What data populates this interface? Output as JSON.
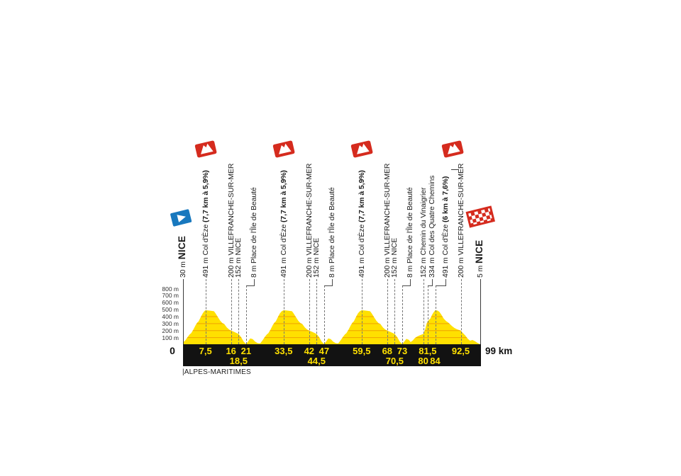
{
  "chart_data": {
    "type": "area",
    "x_unit": "km",
    "xlim": [
      0,
      99
    ],
    "ylim_m": [
      0,
      800
    ],
    "grid": "horizontal-inside-area",
    "colors": {
      "profile_yellow": "#FFE000",
      "gridline_orange": "#F0A202",
      "climb_red": "#D52B1E",
      "start_blue": "#1878BE",
      "bar_black": "#121212",
      "bar_text_yellow": "#FFE000",
      "label_dark": "#1c1c1c"
    },
    "axis": {
      "origin_label": "0",
      "end_label": "99 km",
      "region_label": "|ALPES-MARITIMES",
      "y_ticks": [
        {
          "m": 800,
          "label": "800 m"
        },
        {
          "m": 700,
          "label": "700 m"
        },
        {
          "m": 600,
          "label": "600 m"
        },
        {
          "m": 500,
          "label": "500 m"
        },
        {
          "m": 400,
          "label": "400 m"
        },
        {
          "m": 300,
          "label": "300 m"
        },
        {
          "m": 200,
          "label": "200 m"
        },
        {
          "m": 100,
          "label": "100 m"
        }
      ]
    },
    "km_labels": [
      {
        "km": 7.5,
        "label": "7,5",
        "row": 1
      },
      {
        "km": 16,
        "label": "16",
        "row": 1
      },
      {
        "km": 21,
        "label": "21",
        "row": 1
      },
      {
        "km": 18.5,
        "label": "18,5",
        "row": 2
      },
      {
        "km": 33.5,
        "label": "33,5",
        "row": 1
      },
      {
        "km": 42,
        "label": "42",
        "row": 1
      },
      {
        "km": 47,
        "label": "47",
        "row": 1
      },
      {
        "km": 44.5,
        "label": "44,5",
        "row": 2
      },
      {
        "km": 59.5,
        "label": "59,5",
        "row": 1
      },
      {
        "km": 68,
        "label": "68",
        "row": 1
      },
      {
        "km": 73,
        "label": "73",
        "row": 1
      },
      {
        "km": 70.5,
        "label": "70,5",
        "row": 2
      },
      {
        "km": 81.5,
        "label": "81,5",
        "row": 1
      },
      {
        "km": 80,
        "label": "80",
        "row": 2
      },
      {
        "km": 84,
        "label": "84",
        "row": 2
      },
      {
        "km": 92.5,
        "label": "92,5",
        "row": 1
      }
    ],
    "waypoints": [
      {
        "km": 0,
        "text": "30 m ",
        "bold": "NICE",
        "bold_big": true,
        "type": "start",
        "line": "solid",
        "icon": "start-flag"
      },
      {
        "km": 7.5,
        "text": "491 m Col d'Èze ",
        "bold": "(7,7 km à 5,9%)",
        "type": "climb",
        "icon": "climb-flag"
      },
      {
        "km": 16,
        "text": "200 m VILLEFRANCHE-SUR-MER"
      },
      {
        "km": 18.5,
        "text": "152 m NICE"
      },
      {
        "km": 21,
        "text": "8 m Place de l'Île de Beauté",
        "label_dx": 11
      },
      {
        "km": 33.5,
        "text": "491 m Col d'Èze ",
        "bold": "(7,7 km à 5,9%)",
        "type": "climb",
        "icon": "climb-flag"
      },
      {
        "km": 42,
        "text": "200 m VILLEFRANCHE-SUR-MER"
      },
      {
        "km": 44.5,
        "text": "152 m NICE"
      },
      {
        "km": 47,
        "text": "8 m Place de l'Île de Beauté",
        "label_dx": 11
      },
      {
        "km": 59.5,
        "text": "491 m Col d'Èze ",
        "bold": "(7,7 km à 5,9%)",
        "type": "climb",
        "icon": "climb-flag"
      },
      {
        "km": 68,
        "text": "200 m VILLEFRANCHE-SUR-MER"
      },
      {
        "km": 70.5,
        "text": "152 m NICE"
      },
      {
        "km": 73,
        "text": "8 m Place de l'Île de Beauté",
        "label_dx": 11
      },
      {
        "km": 80,
        "text": "152 m Chemin du Vinaigrier"
      },
      {
        "km": 81.5,
        "text": "334 m Col des Quatre Chemins",
        "label_dx": 6
      },
      {
        "km": 84,
        "text": "491 m Col d'Èze ",
        "bold": "(6 km à 7,6%)",
        "type": "climb",
        "icon": "climb-flag",
        "label_dx": 14,
        "icon_dx": 24,
        "tick": true
      },
      {
        "km": 92.5,
        "text": "200 m VILLEFRANCHE-SUR-MER"
      },
      {
        "km": 99,
        "text": "5 m ",
        "bold": "NICE",
        "bold_big": true,
        "type": "finish",
        "line": "solid",
        "icon": "finish-flag"
      }
    ],
    "profile_km_m": [
      [
        0,
        30
      ],
      [
        0.8,
        62
      ],
      [
        1.6,
        112
      ],
      [
        2.3,
        150
      ],
      [
        2.7,
        162
      ],
      [
        3.4,
        212
      ],
      [
        4.2,
        278
      ],
      [
        4.8,
        318
      ],
      [
        5.2,
        332
      ],
      [
        6,
        402
      ],
      [
        6.6,
        448
      ],
      [
        7.1,
        477
      ],
      [
        7.5,
        491
      ],
      [
        8.3,
        489
      ],
      [
        9.3,
        484
      ],
      [
        10.3,
        477
      ],
      [
        10.8,
        450
      ],
      [
        11.6,
        394
      ],
      [
        12.4,
        340
      ],
      [
        13.2,
        304
      ],
      [
        13.7,
        296
      ],
      [
        14.6,
        244
      ],
      [
        15.4,
        214
      ],
      [
        16,
        200
      ],
      [
        16.9,
        184
      ],
      [
        17.7,
        168
      ],
      [
        18.5,
        152
      ],
      [
        19.3,
        108
      ],
      [
        20.2,
        44
      ],
      [
        21,
        8
      ],
      [
        21.6,
        40
      ],
      [
        22.4,
        88
      ],
      [
        23.2,
        78
      ],
      [
        24,
        44
      ],
      [
        24.9,
        20
      ],
      [
        25.7,
        18
      ],
      [
        26.5,
        62
      ],
      [
        27.3,
        112
      ],
      [
        28,
        150
      ],
      [
        28.4,
        162
      ],
      [
        29.1,
        212
      ],
      [
        29.9,
        278
      ],
      [
        30.5,
        318
      ],
      [
        30.9,
        332
      ],
      [
        31.7,
        402
      ],
      [
        32.3,
        448
      ],
      [
        32.9,
        477
      ],
      [
        33.5,
        491
      ],
      [
        34.3,
        489
      ],
      [
        35.3,
        484
      ],
      [
        36.3,
        477
      ],
      [
        36.8,
        450
      ],
      [
        37.6,
        394
      ],
      [
        38.4,
        340
      ],
      [
        39.2,
        304
      ],
      [
        39.7,
        296
      ],
      [
        40.6,
        244
      ],
      [
        41.4,
        214
      ],
      [
        42,
        200
      ],
      [
        42.9,
        184
      ],
      [
        43.7,
        168
      ],
      [
        44.5,
        152
      ],
      [
        45.3,
        108
      ],
      [
        46.2,
        44
      ],
      [
        47,
        8
      ],
      [
        47.6,
        40
      ],
      [
        48.4,
        88
      ],
      [
        49.2,
        78
      ],
      [
        50,
        44
      ],
      [
        50.9,
        20
      ],
      [
        51.7,
        18
      ],
      [
        52.5,
        62
      ],
      [
        53.3,
        112
      ],
      [
        54,
        150
      ],
      [
        54.4,
        162
      ],
      [
        55.1,
        212
      ],
      [
        55.9,
        278
      ],
      [
        56.5,
        318
      ],
      [
        56.9,
        332
      ],
      [
        57.7,
        402
      ],
      [
        58.3,
        448
      ],
      [
        58.9,
        477
      ],
      [
        59.5,
        491
      ],
      [
        60.3,
        489
      ],
      [
        61.3,
        484
      ],
      [
        62.3,
        477
      ],
      [
        62.8,
        450
      ],
      [
        63.6,
        394
      ],
      [
        64.4,
        340
      ],
      [
        65.2,
        304
      ],
      [
        65.7,
        296
      ],
      [
        66.6,
        244
      ],
      [
        67.4,
        214
      ],
      [
        68,
        200
      ],
      [
        68.9,
        184
      ],
      [
        69.7,
        168
      ],
      [
        70.5,
        152
      ],
      [
        71.3,
        108
      ],
      [
        72.2,
        44
      ],
      [
        73,
        8
      ],
      [
        73.6,
        38
      ],
      [
        74.4,
        82
      ],
      [
        75.2,
        68
      ],
      [
        75.8,
        36
      ],
      [
        76.5,
        58
      ],
      [
        77.2,
        92
      ],
      [
        78,
        116
      ],
      [
        79,
        136
      ],
      [
        80,
        152
      ],
      [
        80.6,
        212
      ],
      [
        81.1,
        292
      ],
      [
        81.5,
        334
      ],
      [
        82,
        356
      ],
      [
        82.4,
        372
      ],
      [
        83,
        430
      ],
      [
        83.5,
        464
      ],
      [
        84,
        491
      ],
      [
        84.8,
        486
      ],
      [
        85.4,
        468
      ],
      [
        86,
        430
      ],
      [
        86.8,
        374
      ],
      [
        87.6,
        336
      ],
      [
        88.3,
        316
      ],
      [
        88.8,
        298
      ],
      [
        89.6,
        264
      ],
      [
        90.4,
        238
      ],
      [
        91.2,
        220
      ],
      [
        92.5,
        200
      ],
      [
        93.2,
        166
      ],
      [
        94,
        132
      ],
      [
        94.8,
        86
      ],
      [
        95.6,
        56
      ],
      [
        96.4,
        66
      ],
      [
        97.2,
        50
      ],
      [
        98,
        26
      ],
      [
        98.6,
        13
      ],
      [
        99,
        5
      ]
    ]
  }
}
